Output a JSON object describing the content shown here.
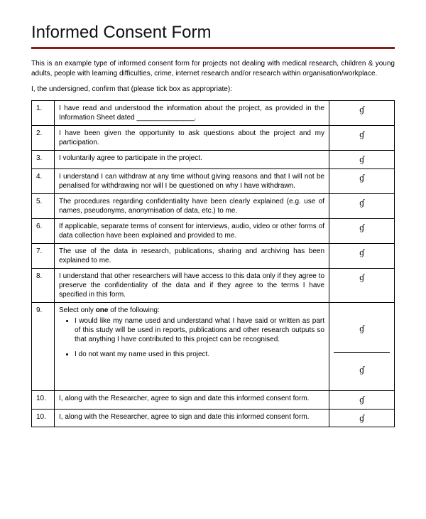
{
  "title": "Informed Consent Form",
  "intro": "This is an example type of informed consent form for projects not dealing with medical research, children & young adults, people with learning difficulties, crime, internet research and/or research within organisation/workplace.",
  "confirm": "I, the undersigned, confirm that (please tick box as appropriate):",
  "blank": "________________",
  "mark": "ɠ",
  "rows": {
    "r1": {
      "num": "1.",
      "text_a": "I have read and understood the information about the project, as provided in the Information Sheet dated ",
      "text_b": "."
    },
    "r2": {
      "num": "2.",
      "text": "I have been given the opportunity to ask questions about the project and my participation."
    },
    "r3": {
      "num": "3.",
      "text": "I voluntarily agree to participate in the project."
    },
    "r4": {
      "num": "4.",
      "text": "I understand I can withdraw at any time without giving reasons and that I will not be penalised for withdrawing nor will I be questioned on why I have withdrawn."
    },
    "r5": {
      "num": "5.",
      "text": "The procedures regarding confidentiality have been clearly explained (e.g. use of names, pseudonyms, anonymisation of data, etc.) to me."
    },
    "r6": {
      "num": "6.",
      "text": "If applicable, separate terms of consent for interviews, audio, video or other forms of data collection have been explained and provided to me."
    },
    "r7": {
      "num": "7.",
      "text": "The use of the data in research, publications, sharing and archiving has been explained to me."
    },
    "r8": {
      "num": "8.",
      "text": "I understand that other researchers will have access to this data only if they agree to preserve the confidentiality of the data and if they agree to the terms I have specified in this form."
    },
    "r9": {
      "num": "9.",
      "lead_a": "Select only ",
      "lead_bold": "one",
      "lead_b": " of the following:",
      "opt1": "I would like my name used and understand what I have said or written as part of this study will be used in reports, publications and other research outputs so that anything I have contributed to this project can be recognised.",
      "opt2": "I do not want my name used in this project."
    },
    "r10": {
      "num": "10.",
      "text": "I, along with the Researcher, agree to sign and date this informed consent form."
    },
    "r11": {
      "num": "10.",
      "text": "I, along with the Researcher, agree to sign and date this informed consent form."
    }
  },
  "colors": {
    "underline": "#8b1a1a",
    "border": "#000000",
    "text": "#000000",
    "background": "#ffffff"
  }
}
